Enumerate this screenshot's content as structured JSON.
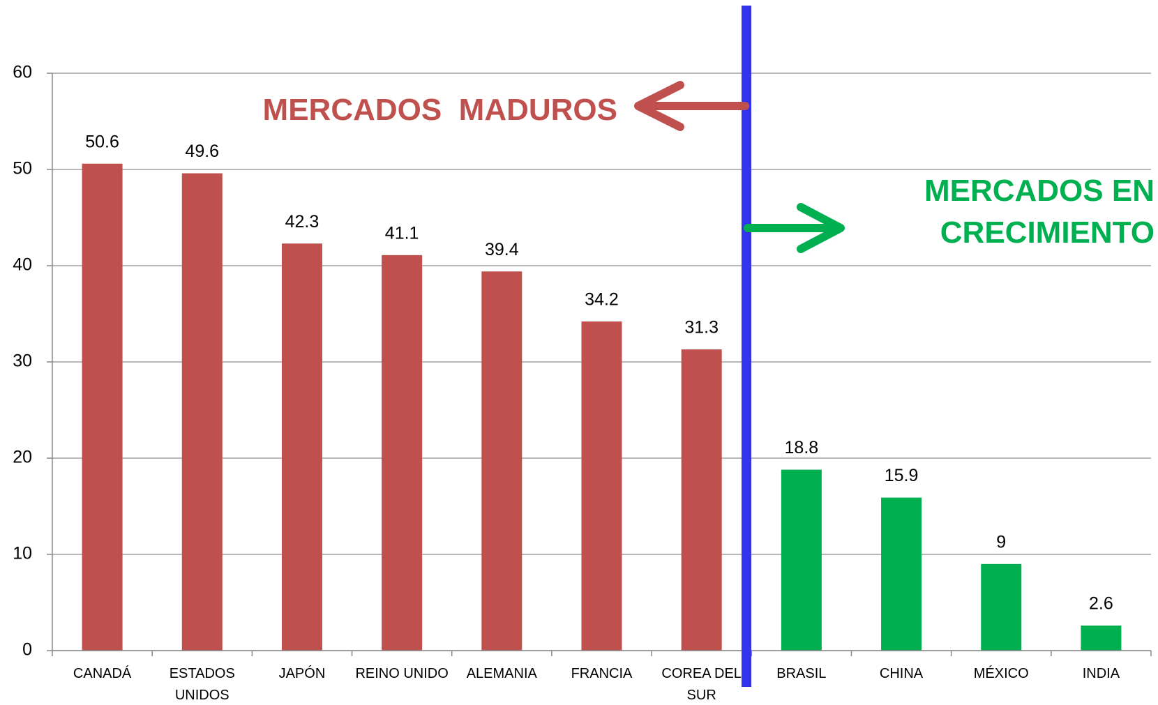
{
  "chart_data": {
    "type": "bar",
    "categories": [
      "CANADÁ",
      "ESTADOS UNIDOS",
      "JAPÓN",
      "REINO UNIDO",
      "ALEMANIA",
      "FRANCIA",
      "COREA DEL SUR",
      "BRASIL",
      "CHINA",
      "MÉXICO",
      "INDIA"
    ],
    "values": [
      50.6,
      49.6,
      42.3,
      41.1,
      39.4,
      34.2,
      31.3,
      18.8,
      15.9,
      9,
      2.6
    ],
    "colors": [
      "#c0504d",
      "#c0504d",
      "#c0504d",
      "#c0504d",
      "#c0504d",
      "#c0504d",
      "#c0504d",
      "#00b050",
      "#00b050",
      "#00b050",
      "#00b050"
    ],
    "ylim": [
      0,
      60
    ],
    "yticks": [
      0,
      10,
      20,
      30,
      40,
      50,
      60
    ],
    "grid": true,
    "annotations": [
      {
        "text": "MERCADOS  MADUROS",
        "color": "#c0504d"
      },
      {
        "text": "MERCADOS EN CRECIMIENTO",
        "color": "#00b050"
      }
    ]
  }
}
